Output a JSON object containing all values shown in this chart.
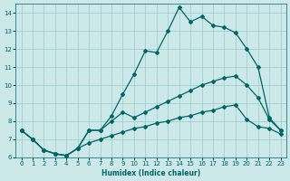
{
  "xlabel": "Humidex (Indice chaleur)",
  "xlim": [
    -0.5,
    23.5
  ],
  "ylim": [
    6,
    14.5
  ],
  "yticks": [
    6,
    7,
    8,
    9,
    10,
    11,
    12,
    13,
    14
  ],
  "xticks": [
    0,
    1,
    2,
    3,
    4,
    5,
    6,
    7,
    8,
    9,
    10,
    11,
    12,
    13,
    14,
    15,
    16,
    17,
    18,
    19,
    20,
    21,
    22,
    23
  ],
  "bg_color": "#cce8e8",
  "line_color": "#006666",
  "grid_color": "#99cccc",
  "series1_x": [
    0,
    1,
    2,
    3,
    4,
    5,
    6,
    7,
    8,
    9,
    10,
    11,
    12,
    13,
    14,
    15,
    16,
    17,
    18,
    19,
    20,
    21,
    22,
    23
  ],
  "series1_y": [
    7.5,
    7.0,
    6.4,
    6.2,
    6.1,
    6.5,
    7.5,
    7.5,
    8.3,
    9.5,
    10.6,
    11.9,
    11.8,
    13.0,
    14.3,
    13.5,
    13.8,
    13.3,
    13.2,
    12.9,
    12.0,
    11.0,
    8.2,
    7.5
  ],
  "series2_x": [
    0,
    1,
    2,
    3,
    4,
    5,
    6,
    7,
    8,
    9,
    10,
    11,
    12,
    13,
    14,
    15,
    16,
    17,
    18,
    19,
    20,
    21,
    22,
    23
  ],
  "series2_y": [
    7.5,
    7.0,
    6.4,
    6.2,
    6.1,
    6.5,
    7.5,
    7.5,
    8.0,
    8.5,
    8.2,
    8.5,
    8.8,
    9.1,
    9.4,
    9.7,
    10.0,
    10.2,
    10.4,
    10.5,
    10.0,
    9.3,
    8.1,
    7.5
  ],
  "series3_x": [
    0,
    1,
    2,
    3,
    4,
    5,
    6,
    7,
    8,
    9,
    10,
    11,
    12,
    13,
    14,
    15,
    16,
    17,
    18,
    19,
    20,
    21,
    22,
    23
  ],
  "series3_y": [
    7.5,
    7.0,
    6.4,
    6.2,
    6.1,
    6.5,
    6.8,
    7.0,
    7.2,
    7.4,
    7.6,
    7.7,
    7.9,
    8.0,
    8.2,
    8.3,
    8.5,
    8.6,
    8.8,
    8.9,
    8.1,
    7.7,
    7.6,
    7.3
  ]
}
